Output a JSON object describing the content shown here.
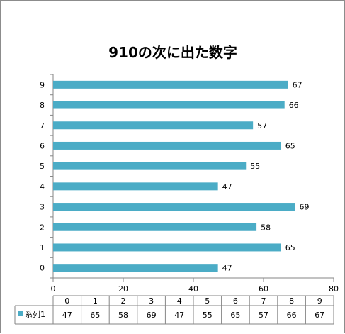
{
  "chart_data": {
    "type": "bar",
    "orientation": "horizontal",
    "title": "910の次に出た数字",
    "categories": [
      "0",
      "1",
      "2",
      "3",
      "4",
      "5",
      "6",
      "7",
      "8",
      "9"
    ],
    "series": [
      {
        "name": "系列1",
        "values": [
          47,
          65,
          58,
          69,
          47,
          55,
          65,
          57,
          66,
          67
        ],
        "color": "#4bacc6"
      }
    ],
    "xlim": [
      0,
      80
    ],
    "xticks": [
      "0",
      "20",
      "40",
      "60",
      "80"
    ],
    "xlabel": "",
    "ylabel": "",
    "grid": false,
    "data_table": true,
    "legend": "data-table"
  }
}
